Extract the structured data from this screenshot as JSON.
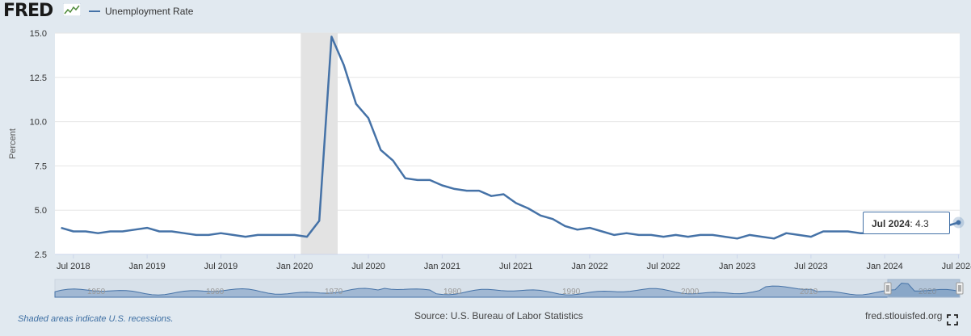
{
  "header": {
    "logo_text": "FRED",
    "legend_label": "Unemployment Rate"
  },
  "tooltip": {
    "date": "Jul 2024",
    "value": "4.3"
  },
  "footer": {
    "recession_note": "Shaded areas indicate U.S. recessions.",
    "source": "Source: U.S. Bureau of Labor Statistics",
    "url": "fred.stlouisfed.org"
  },
  "icons": {
    "fullscreen": "fullscreen-icon",
    "logo_mark": "line-chart-icon"
  },
  "colors": {
    "series": "#4572a7",
    "recession": "#e3e3e3",
    "page_bg": "#e1e9f0",
    "plot_bg": "#ffffff"
  },
  "navigator": {
    "labels": [
      "1950",
      "1960",
      "1970",
      "1980",
      "1990",
      "2000",
      "2010",
      "2020"
    ]
  },
  "chart_data": {
    "type": "line",
    "title": "",
    "xlabel": "",
    "ylabel": "Percent",
    "ylim": [
      2.5,
      15.0
    ],
    "yticks": [
      "2.5",
      "5.0",
      "7.5",
      "10.0",
      "12.5",
      "15.0"
    ],
    "xticks": [
      "Jul 2018",
      "Jan 2019",
      "Jul 2019",
      "Jan 2020",
      "Jul 2020",
      "Jan 2021",
      "Jul 2021",
      "Jan 2022",
      "Jul 2022",
      "Jan 2023",
      "Jul 2023",
      "Jan 2024",
      "Jul 2024"
    ],
    "grid": true,
    "legend": "top-left",
    "recessions": [
      {
        "start": "2020-02",
        "end": "2020-04"
      }
    ],
    "series": [
      {
        "name": "Unemployment Rate",
        "x": [
          "2018-06",
          "2018-07",
          "2018-08",
          "2018-09",
          "2018-10",
          "2018-11",
          "2018-12",
          "2019-01",
          "2019-02",
          "2019-03",
          "2019-04",
          "2019-05",
          "2019-06",
          "2019-07",
          "2019-08",
          "2019-09",
          "2019-10",
          "2019-11",
          "2019-12",
          "2020-01",
          "2020-02",
          "2020-03",
          "2020-04",
          "2020-05",
          "2020-06",
          "2020-07",
          "2020-08",
          "2020-09",
          "2020-10",
          "2020-11",
          "2020-12",
          "2021-01",
          "2021-02",
          "2021-03",
          "2021-04",
          "2021-05",
          "2021-06",
          "2021-07",
          "2021-08",
          "2021-09",
          "2021-10",
          "2021-11",
          "2021-12",
          "2022-01",
          "2022-02",
          "2022-03",
          "2022-04",
          "2022-05",
          "2022-06",
          "2022-07",
          "2022-08",
          "2022-09",
          "2022-10",
          "2022-11",
          "2022-12",
          "2023-01",
          "2023-02",
          "2023-03",
          "2023-04",
          "2023-05",
          "2023-06",
          "2023-07",
          "2023-08",
          "2023-09",
          "2023-10",
          "2023-11",
          "2023-12",
          "2024-01",
          "2024-02",
          "2024-03",
          "2024-04",
          "2024-05",
          "2024-06",
          "2024-07"
        ],
        "values": [
          4.0,
          3.8,
          3.8,
          3.7,
          3.8,
          3.8,
          3.9,
          4.0,
          3.8,
          3.8,
          3.7,
          3.6,
          3.6,
          3.7,
          3.6,
          3.5,
          3.6,
          3.6,
          3.6,
          3.6,
          3.5,
          4.4,
          14.8,
          13.2,
          11.0,
          10.2,
          8.4,
          7.8,
          6.8,
          6.7,
          6.7,
          6.4,
          6.2,
          6.1,
          6.1,
          5.8,
          5.9,
          5.4,
          5.1,
          4.7,
          4.5,
          4.1,
          3.9,
          4.0,
          3.8,
          3.6,
          3.7,
          3.6,
          3.6,
          3.5,
          3.6,
          3.5,
          3.6,
          3.6,
          3.5,
          3.4,
          3.6,
          3.5,
          3.4,
          3.7,
          3.6,
          3.5,
          3.8,
          3.8,
          3.8,
          3.7,
          3.7,
          3.7,
          3.9,
          3.8,
          3.9,
          4.0,
          4.1,
          4.3
        ]
      }
    ]
  }
}
